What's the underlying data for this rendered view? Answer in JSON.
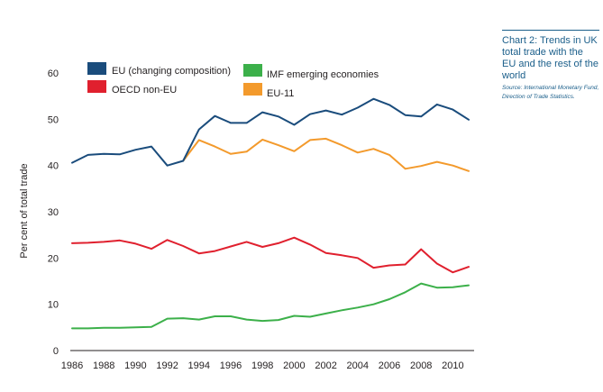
{
  "side_panel": {
    "title": "Chart 2: Trends in UK total trade with the EU and the rest of the world",
    "source": "Source: International Monetary Fund, Direction of Trade Statistics."
  },
  "chart_data": {
    "type": "line",
    "title": "Chart 2: Trends in UK total trade with the EU and the rest of the world",
    "xlabel": "",
    "ylabel": "Per cent of total trade",
    "xlim": [
      1986,
      2011
    ],
    "ylim": [
      0,
      60
    ],
    "x_ticks": [
      1986,
      1988,
      1990,
      1992,
      1994,
      1996,
      1998,
      2000,
      2002,
      2004,
      2006,
      2008,
      2010
    ],
    "y_ticks": [
      0,
      10,
      20,
      30,
      40,
      50,
      60
    ],
    "grid": false,
    "legend_position": "top-left",
    "series": [
      {
        "name": "EU (changing composition)",
        "color": "#1a4c7c",
        "x": [
          1986,
          1987,
          1988,
          1989,
          1990,
          1991,
          1992,
          1993,
          1994,
          1995,
          1996,
          1997,
          1998,
          1999,
          2000,
          2001,
          2002,
          2003,
          2004,
          2005,
          2006,
          2007,
          2008,
          2009,
          2010,
          2011
        ],
        "values": [
          40.6,
          42.3,
          42.5,
          42.4,
          43.4,
          44.1,
          40.0,
          41.0,
          47.8,
          50.7,
          49.2,
          49.2,
          51.5,
          50.6,
          48.8,
          51.1,
          51.9,
          51.0,
          52.5,
          54.4,
          53.1,
          50.9,
          50.6,
          53.2,
          52.1,
          49.9
        ]
      },
      {
        "name": "OECD non-EU",
        "color": "#e0202e",
        "x": [
          1986,
          1987,
          1988,
          1989,
          1990,
          1991,
          1992,
          1993,
          1994,
          1995,
          1996,
          1997,
          1998,
          1999,
          2000,
          2001,
          2002,
          2003,
          2004,
          2005,
          2006,
          2007,
          2008,
          2009,
          2010,
          2011
        ],
        "values": [
          23.2,
          23.3,
          23.5,
          23.8,
          23.1,
          22.0,
          23.9,
          22.6,
          21.0,
          21.5,
          22.5,
          23.5,
          22.4,
          23.2,
          24.4,
          22.9,
          21.1,
          20.6,
          20.0,
          17.9,
          18.4,
          18.6,
          21.9,
          18.8,
          16.9,
          18.1
        ]
      },
      {
        "name": "IMF emerging economies",
        "color": "#3cb04a",
        "x": [
          1986,
          1987,
          1988,
          1989,
          1990,
          1991,
          1992,
          1993,
          1994,
          1995,
          1996,
          1997,
          1998,
          1999,
          2000,
          2001,
          2002,
          2003,
          2004,
          2005,
          2006,
          2007,
          2008,
          2009,
          2010,
          2011
        ],
        "values": [
          4.8,
          4.8,
          4.9,
          4.9,
          5.0,
          5.1,
          6.9,
          7.0,
          6.7,
          7.4,
          7.4,
          6.7,
          6.4,
          6.6,
          7.5,
          7.3,
          8.0,
          8.7,
          9.3,
          10.0,
          11.1,
          12.6,
          14.5,
          13.6,
          13.7,
          14.1
        ]
      },
      {
        "name": "EU-11",
        "color": "#f39a2c",
        "x": [
          1993,
          1994,
          1995,
          1996,
          1997,
          1998,
          1999,
          2000,
          2001,
          2002,
          2003,
          2004,
          2005,
          2006,
          2007,
          2008,
          2009,
          2010,
          2011
        ],
        "values": [
          41.0,
          45.5,
          44.1,
          42.5,
          43.0,
          45.6,
          44.4,
          43.1,
          45.5,
          45.8,
          44.4,
          42.8,
          43.6,
          42.3,
          39.3,
          39.9,
          40.8,
          40.0,
          38.8
        ]
      }
    ]
  }
}
